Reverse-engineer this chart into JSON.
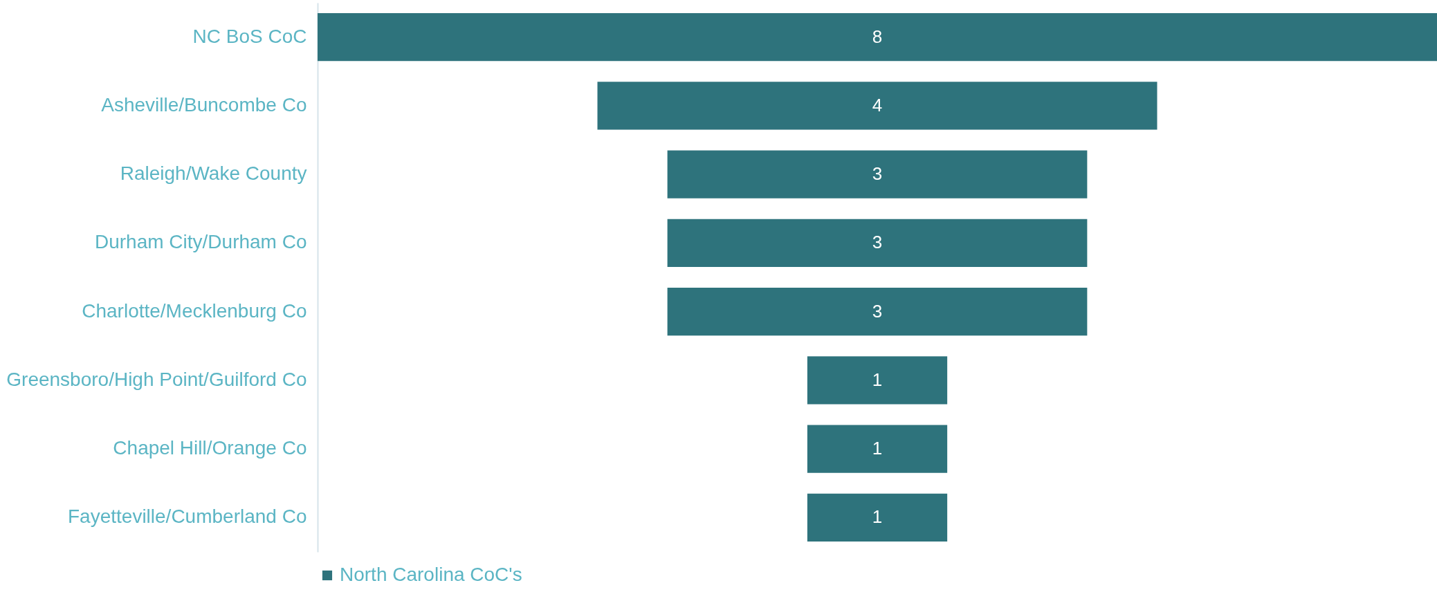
{
  "chart_data": {
    "type": "other",
    "categories": [
      "NC BoS CoC",
      "Asheville/Buncombe Co",
      "Raleigh/Wake County",
      "Durham City/Durham Co",
      "Charlotte/Mecklenburg Co",
      "Greensboro/High Point/Guilford Co",
      "Chapel Hill/Orange Co",
      "Fayetteville/Cumberland Co"
    ],
    "series": [
      {
        "name": "North Carolina CoC's",
        "color": "#2e737c",
        "values": [
          8,
          4,
          3,
          3,
          3,
          1,
          1,
          1
        ]
      }
    ],
    "data_labels": true,
    "legend": "bottom"
  }
}
